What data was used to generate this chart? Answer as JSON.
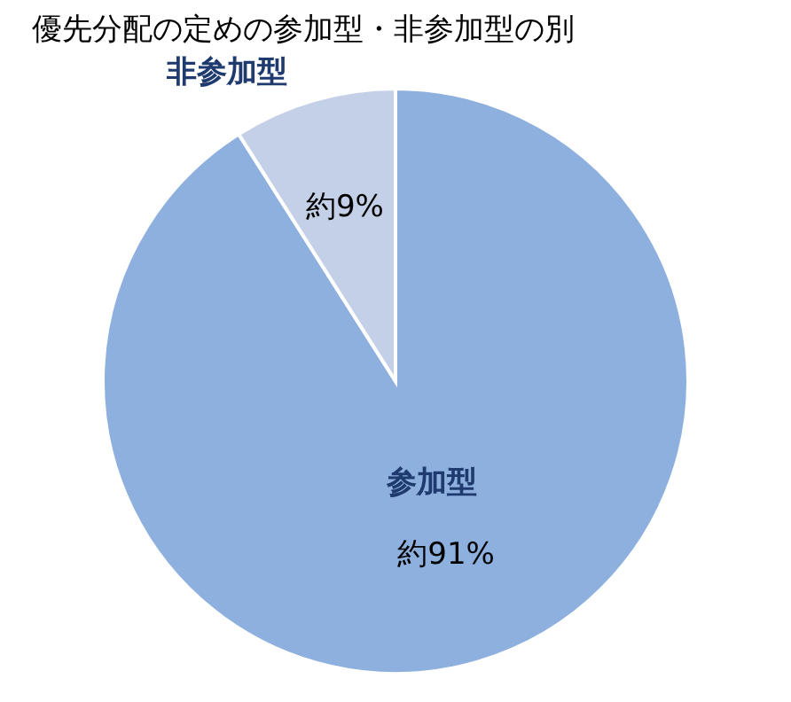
{
  "chart_data": {
    "type": "pie",
    "title": "優先分配の定めの参加型・非参加型の別",
    "categories": [
      "参加型",
      "非参加型"
    ],
    "values": [
      91,
      9
    ],
    "colors": [
      "#8eb0de",
      "#c4d0e7"
    ],
    "value_labels": [
      "約91%",
      "約9%"
    ],
    "legend": false
  }
}
